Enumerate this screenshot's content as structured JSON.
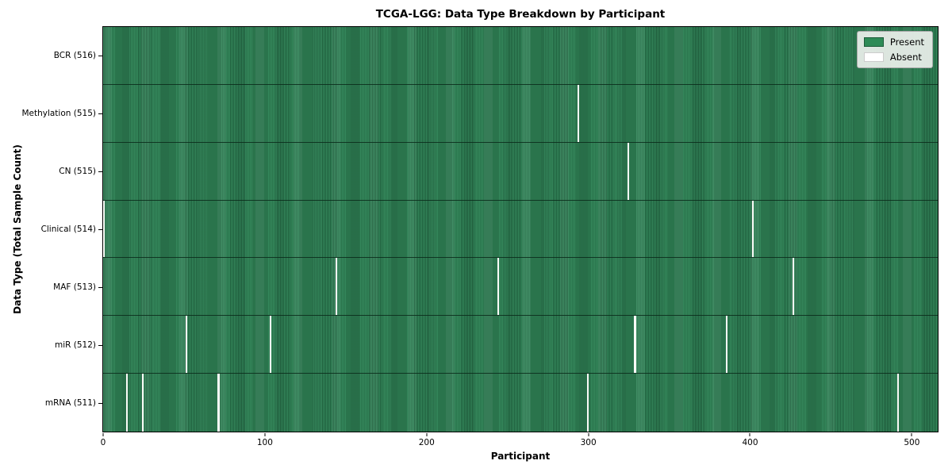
{
  "chart_data": {
    "type": "heatmap",
    "title": "TCGA-LGG: Data Type Breakdown by Participant",
    "xlabel": "Participant",
    "ylabel": "Data Type (Total Sample Count)",
    "x_ticks": [
      0,
      100,
      200,
      300,
      400,
      500
    ],
    "x_range": [
      -0.5,
      516.5
    ],
    "n_participants": 516,
    "grid": false,
    "legend_position": "upper right",
    "colors": {
      "present": "#2e8b57",
      "present_edge": "#1d5c3a",
      "absent": "#ffffff",
      "absent_edge": "#cccccc",
      "legend_bg": "#ebf0eb",
      "legend_border": "#a9a9a9"
    },
    "rows": [
      {
        "label": "BCR (516)",
        "data_type": "BCR",
        "total_samples": 516,
        "absent_participants": []
      },
      {
        "label": "Methylation (515)",
        "data_type": "Methylation",
        "total_samples": 515,
        "absent_participants": [
          294
        ]
      },
      {
        "label": "CN (515)",
        "data_type": "CN",
        "total_samples": 515,
        "absent_participants": [
          325
        ]
      },
      {
        "label": "Clinical (514)",
        "data_type": "Clinical",
        "total_samples": 514,
        "absent_participants": [
          0,
          402
        ]
      },
      {
        "label": "MAF (513)",
        "data_type": "MAF",
        "total_samples": 513,
        "absent_participants": [
          144,
          244,
          427
        ]
      },
      {
        "label": "miR (512)",
        "data_type": "miR",
        "total_samples": 512,
        "absent_participants": [
          51,
          103,
          329,
          386
        ]
      },
      {
        "label": "mRNA (511)",
        "data_type": "mRNA",
        "total_samples": 511,
        "absent_participants": [
          14,
          24,
          71,
          300,
          492
        ]
      }
    ],
    "legend": [
      {
        "label": "Present",
        "color": "#2e8b57"
      },
      {
        "label": "Absent",
        "color": "#ffffff"
      }
    ]
  }
}
